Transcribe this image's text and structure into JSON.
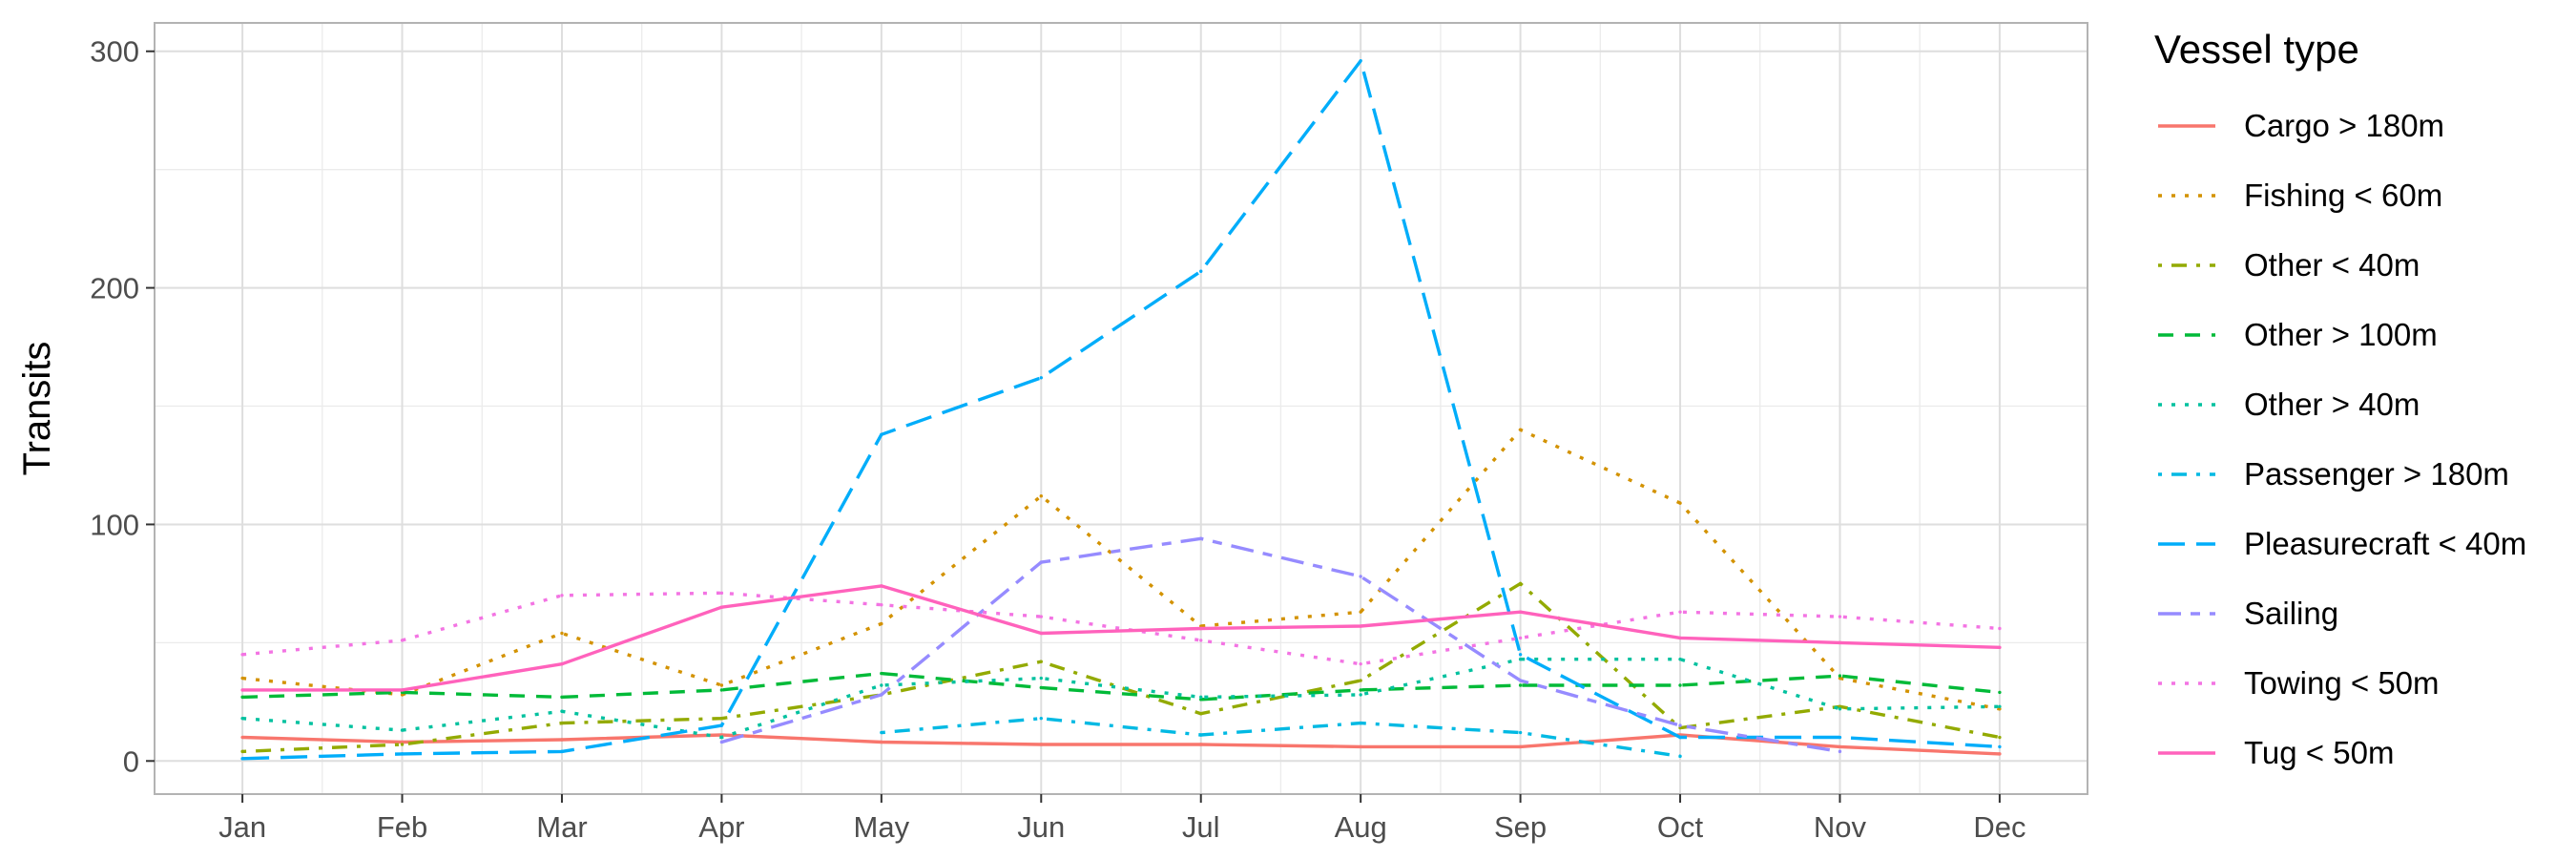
{
  "chart_data": {
    "type": "line",
    "title": "",
    "xlabel": "",
    "ylabel": "Transits",
    "categories": [
      "Jan",
      "Feb",
      "Mar",
      "Apr",
      "May",
      "Jun",
      "Jul",
      "Aug",
      "Sep",
      "Oct",
      "Nov",
      "Dec"
    ],
    "yticks": [
      0,
      100,
      200,
      300
    ],
    "ylim": [
      -14,
      312
    ],
    "grid": true,
    "legend": {
      "title": "Vessel type",
      "position": "right"
    },
    "series": [
      {
        "name": "Cargo > 180m",
        "color": "#F8766D",
        "dash": "solid",
        "values": [
          10,
          8,
          9,
          11,
          8,
          7,
          7,
          6,
          6,
          11,
          6,
          3
        ]
      },
      {
        "name": "Fishing < 60m",
        "color": "#D39200",
        "dash": "dotted",
        "values": [
          35,
          28,
          54,
          32,
          58,
          112,
          57,
          63,
          140,
          109,
          35,
          22
        ]
      },
      {
        "name": "Other < 40m",
        "color": "#93AA00",
        "dash": "dotdash",
        "values": [
          4,
          7,
          16,
          18,
          28,
          42,
          20,
          34,
          75,
          14,
          23,
          10
        ]
      },
      {
        "name": "Other > 100m",
        "color": "#00BA38",
        "dash": "dashed",
        "values": [
          27,
          29,
          27,
          30,
          37,
          31,
          26,
          30,
          32,
          32,
          36,
          29
        ]
      },
      {
        "name": "Other > 40m",
        "color": "#00C19F",
        "dash": "dotted",
        "values": [
          18,
          13,
          21,
          10,
          32,
          35,
          27,
          28,
          43,
          43,
          22,
          23
        ]
      },
      {
        "name": "Passenger > 180m",
        "color": "#00B9E3",
        "dash": "dotdash",
        "values": [
          null,
          null,
          null,
          null,
          12,
          18,
          11,
          16,
          12,
          2,
          null,
          null
        ]
      },
      {
        "name": "Pleasurecraft < 40m",
        "color": "#00ADFA",
        "dash": "longdash",
        "values": [
          1,
          3,
          4,
          15,
          138,
          162,
          207,
          296,
          45,
          10,
          10,
          6
        ]
      },
      {
        "name": "Sailing",
        "color": "#968BFF",
        "dash": "twodash",
        "values": [
          null,
          null,
          null,
          8,
          28,
          84,
          94,
          78,
          34,
          15,
          4,
          null
        ]
      },
      {
        "name": "Towing < 50m",
        "color": "#F374E3",
        "dash": "dotted2",
        "values": [
          45,
          51,
          70,
          71,
          66,
          61,
          51,
          41,
          52,
          63,
          61,
          56
        ]
      },
      {
        "name": "Tug < 50m",
        "color": "#FF62BC",
        "dash": "tug",
        "values": [
          30,
          30,
          41,
          65,
          74,
          54,
          56,
          57,
          63,
          52,
          50,
          48
        ]
      }
    ]
  }
}
